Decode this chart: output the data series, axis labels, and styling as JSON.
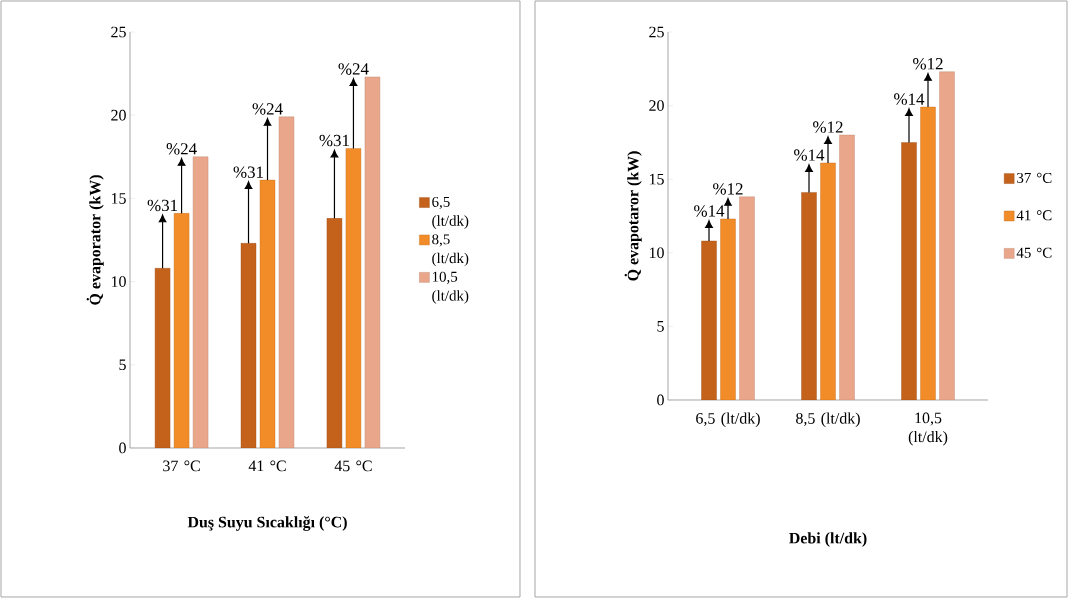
{
  "chart_data": [
    {
      "type": "bar",
      "xlabel": "Duş Suyu Sıcaklığı (°C)",
      "ylabel": "Q̇ evaporator (kW)",
      "categories": [
        "37 °C",
        "41 °C",
        "45 °C"
      ],
      "series": [
        {
          "name": "6,5 (lt/dk)",
          "color": "#c4621c",
          "values": [
            10.8,
            12.3,
            13.8
          ]
        },
        {
          "name": "8,5 (lt/dk)",
          "color": "#f28c28",
          "values": [
            14.1,
            16.1,
            18.0
          ]
        },
        {
          "name": "10,5 (lt/dk)",
          "color": "#eaa68a",
          "values": [
            17.5,
            19.9,
            22.3
          ]
        }
      ],
      "ylim": [
        0,
        25
      ],
      "yticks": [
        0,
        5,
        10,
        15,
        20,
        25
      ],
      "legend": "right",
      "annotations": [
        "%31",
        "%24",
        "%31",
        "%24",
        "%31",
        "%24"
      ]
    },
    {
      "type": "bar",
      "xlabel": "Debi (lt/dk)",
      "ylabel": "Q̇ evapotaror (kW)",
      "categories": [
        "6,5 (lt/dk)",
        "8,5 (lt/dk)",
        "10,5 (lt/dk)"
      ],
      "series": [
        {
          "name": "37 °C",
          "color": "#c4621c",
          "values": [
            10.8,
            14.1,
            17.5
          ]
        },
        {
          "name": "41 °C",
          "color": "#f28c28",
          "values": [
            12.3,
            16.1,
            19.9
          ]
        },
        {
          "name": "45 °C",
          "color": "#eaa68a",
          "values": [
            13.8,
            18.0,
            22.3
          ]
        }
      ],
      "ylim": [
        0,
        25
      ],
      "yticks": [
        0,
        5,
        10,
        15,
        20,
        25
      ],
      "legend": "right",
      "annotations": [
        "%14",
        "%12",
        "%14",
        "%12",
        "%14",
        "%12"
      ]
    }
  ]
}
